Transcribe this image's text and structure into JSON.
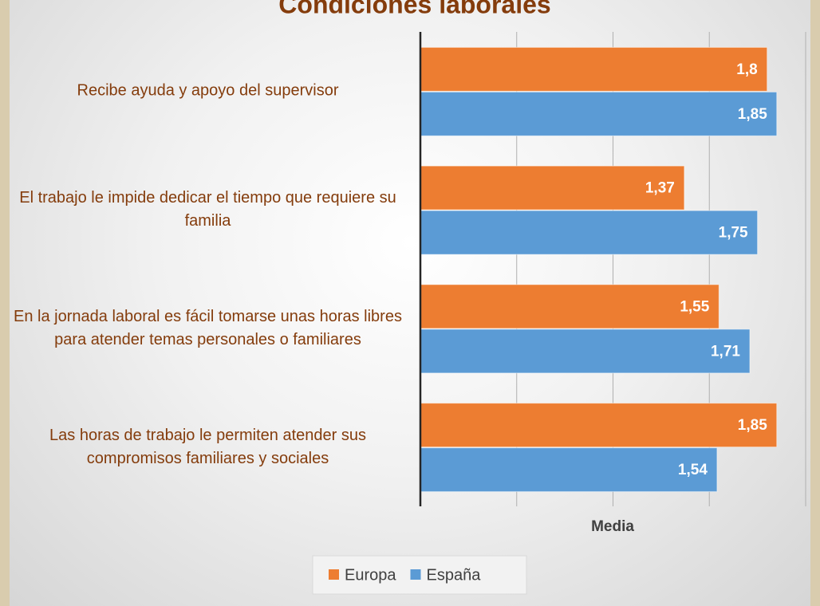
{
  "chart_data": {
    "type": "bar",
    "orientation": "horizontal",
    "title": "Condiciones laborales",
    "categories": [
      "Recibe ayuda y apoyo del supervisor",
      "El trabajo le impide dedicar el tiempo que requiere su familia",
      "En la jornada laboral es fácil tomarse unas horas libres para atender temas personales o familiares",
      "Las horas de trabajo le permiten atender sus compromisos familiares y sociales"
    ],
    "series": [
      {
        "name": "Europa",
        "color": "#ed7d31",
        "values": [
          1.8,
          1.37,
          1.55,
          1.85
        ],
        "value_labels": [
          "1,8",
          "1,37",
          "1,55",
          "1,85"
        ]
      },
      {
        "name": "España",
        "color": "#5b9bd5",
        "values": [
          1.85,
          1.75,
          1.71,
          1.54
        ],
        "value_labels": [
          "1,85",
          "1,75",
          "1,71",
          "1,54"
        ]
      }
    ],
    "xlabel": "Media",
    "xlim": [
      0,
      2
    ],
    "xticks": [
      0,
      0.5,
      1,
      1.5,
      2
    ],
    "grid": true,
    "legend": "bottom"
  }
}
